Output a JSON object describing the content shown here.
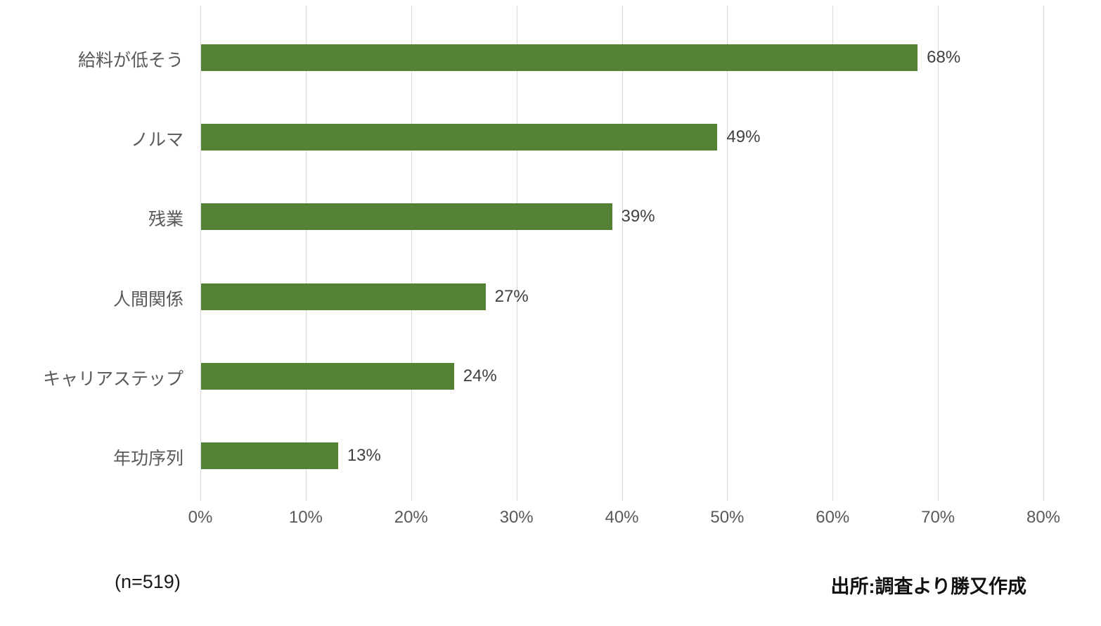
{
  "chart_data": {
    "type": "bar",
    "orientation": "horizontal",
    "title": "",
    "xlabel": "",
    "ylabel": "",
    "categories": [
      "給料が低そう",
      "ノルマ",
      "残業",
      "人間関係",
      "キャリアステップ",
      "年功序列"
    ],
    "values": [
      68,
      49,
      39,
      27,
      24,
      13
    ],
    "value_labels": [
      "68%",
      "49%",
      "39%",
      "27%",
      "24%",
      "13%"
    ],
    "xlim": [
      0,
      80
    ],
    "x_ticks": [
      0,
      10,
      20,
      30,
      40,
      50,
      60,
      70,
      80
    ],
    "x_tick_labels": [
      "0%",
      "10%",
      "20%",
      "30%",
      "40%",
      "50%",
      "60%",
      "70%",
      "80%"
    ],
    "bar_color": "#548235",
    "grid": true,
    "grid_color": "#d9d9d9",
    "axis_label_color": "#595959",
    "value_label_color": "#404040",
    "legend": false
  },
  "footer": {
    "sample_size": "(n=519)",
    "source": "出所:調査より勝又作成"
  }
}
